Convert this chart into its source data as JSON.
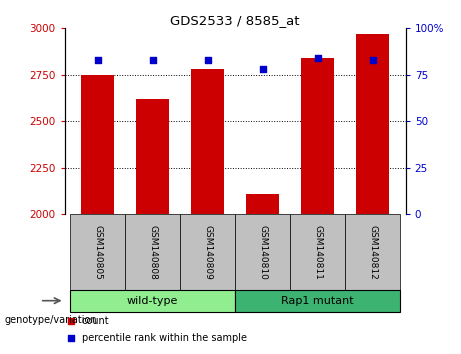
{
  "title": "GDS2533 / 8585_at",
  "samples": [
    "GSM140805",
    "GSM140808",
    "GSM140809",
    "GSM140810",
    "GSM140811",
    "GSM140812"
  ],
  "counts": [
    2750,
    2620,
    2780,
    2110,
    2840,
    2970
  ],
  "percentiles": [
    83,
    83,
    83,
    78,
    84,
    83
  ],
  "ylim_left": [
    2000,
    3000
  ],
  "ylim_right": [
    0,
    100
  ],
  "yticks_left": [
    2000,
    2250,
    2500,
    2750,
    3000
  ],
  "yticks_right": [
    0,
    25,
    50,
    75,
    100
  ],
  "groups": [
    {
      "label": "wild-type",
      "start": 0,
      "end": 2,
      "color": "#90EE90"
    },
    {
      "label": "Rap1 mutant",
      "start": 3,
      "end": 5,
      "color": "#3CB371"
    }
  ],
  "bar_color": "#CC0000",
  "scatter_color": "#0000CC",
  "left_tick_color": "#CC0000",
  "right_tick_color": "#0000CC",
  "sample_bg_color": "#C0C0C0",
  "legend_items": [
    {
      "label": "count",
      "color": "#CC0000"
    },
    {
      "label": "percentile rank within the sample",
      "color": "#0000CC"
    }
  ],
  "grid_lines": [
    2750,
    2500,
    2250
  ]
}
